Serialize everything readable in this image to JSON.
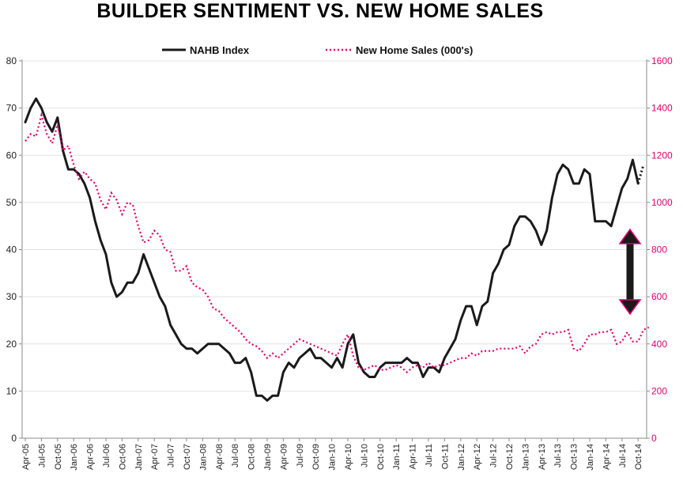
{
  "chart_data": {
    "type": "line",
    "title": "BUILDER SENTIMENT  VS. NEW HOME SALES",
    "x_tick_labels": [
      "Apr-05",
      "Jul-05",
      "Oct-05",
      "Jan-06",
      "Apr-06",
      "Jul-06",
      "Oct-06",
      "Jan-07",
      "Apr-07",
      "Jul-07",
      "Oct-07",
      "Jan-08",
      "Apr-08",
      "Jul-08",
      "Oct-08",
      "Jan-09",
      "Apr-09",
      "Jul-09",
      "Oct-09",
      "Jan-10",
      "Apr-10",
      "Jul-10",
      "Oct-10",
      "Jan-11",
      "Apr-11",
      "Jul-11",
      "Oct-11",
      "Jan-12",
      "Apr-12",
      "Jul-12",
      "Oct-12",
      "Jan-13",
      "Apr-13",
      "Jul-13",
      "Oct-13",
      "Jan-14",
      "Apr-14",
      "Jul-14",
      "Oct-14"
    ],
    "y_left": {
      "ylim": [
        0,
        80
      ],
      "ticks": [
        0,
        10,
        20,
        30,
        40,
        50,
        60,
        70,
        80
      ]
    },
    "y_right": {
      "ylim": [
        0,
        1600
      ],
      "ticks": [
        0,
        200,
        400,
        600,
        800,
        1000,
        1200,
        1400,
        1600
      ],
      "color": "#e0006f"
    },
    "grid": "horizontal",
    "legend_position": "top",
    "series": [
      {
        "name": "NAHB Index",
        "axis": "left",
        "color": "#1a1a1a",
        "style": "solid",
        "values": [
          67,
          70,
          72,
          70,
          67,
          65,
          68,
          61,
          57,
          57,
          56,
          54,
          51,
          46,
          42,
          39,
          33,
          30,
          31,
          33,
          33,
          35,
          39,
          36,
          33,
          30,
          28,
          24,
          22,
          20,
          19,
          19,
          18,
          19,
          20,
          20,
          20,
          19,
          18,
          16,
          16,
          17,
          14,
          9,
          9,
          8,
          9,
          9,
          14,
          16,
          15,
          17,
          18,
          19,
          17,
          17,
          16,
          15,
          17,
          15,
          20,
          22,
          16,
          14,
          13,
          13,
          15,
          16,
          16,
          16,
          16,
          17,
          16,
          16,
          13,
          15,
          15,
          14,
          17,
          19,
          21,
          25,
          28,
          28,
          24,
          28,
          29,
          35,
          37,
          40,
          41,
          45,
          47,
          47,
          46,
          44,
          41,
          44,
          51,
          56,
          58,
          57,
          54,
          54,
          57,
          56,
          46,
          46,
          46,
          45,
          49,
          53,
          55,
          59,
          54,
          58
        ]
      },
      {
        "name": "New Home Sales (000's)",
        "axis": "right",
        "color": "#e0006f",
        "style": "dotted",
        "values": [
          1260,
          1290,
          1280,
          1370,
          1290,
          1250,
          1330,
          1220,
          1240,
          1160,
          1100,
          1130,
          1100,
          1080,
          1010,
          970,
          1040,
          1010,
          950,
          1000,
          990,
          900,
          830,
          840,
          880,
          860,
          800,
          790,
          710,
          710,
          730,
          660,
          640,
          630,
          600,
          550,
          540,
          510,
          490,
          470,
          450,
          420,
          400,
          390,
          370,
          340,
          360,
          340,
          360,
          380,
          400,
          420,
          410,
          400,
          390,
          380,
          370,
          360,
          350,
          400,
          440,
          350,
          300,
          290,
          300,
          310,
          290,
          290,
          300,
          310,
          300,
          280,
          300,
          310,
          300,
          320,
          300,
          310,
          310,
          320,
          330,
          340,
          340,
          360,
          350,
          370,
          370,
          370,
          380,
          380,
          380,
          380,
          390,
          360,
          390,
          400,
          440,
          450,
          440,
          450,
          450,
          460,
          380,
          370,
          400,
          440,
          440,
          450,
          450,
          460,
          400,
          410,
          450,
          410,
          410,
          460,
          470
        ]
      }
    ]
  },
  "legend": {
    "items": [
      {
        "label": "NAHB Index"
      },
      {
        "label": "New Home Sales (000's)"
      }
    ]
  }
}
